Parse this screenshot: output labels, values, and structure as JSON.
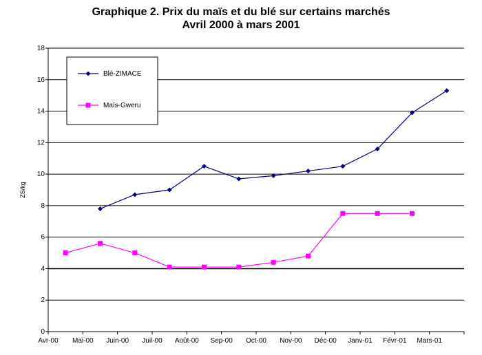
{
  "chart_data": {
    "type": "line",
    "title": "Graphique 2. Prix du maïs et du blé sur certains marchés",
    "subtitle": "Avril 2000 à mars 2001",
    "xlabel": "",
    "ylabel": "ZS/kg",
    "ylim": [
      0,
      18
    ],
    "yticks": [
      0,
      2,
      4,
      6,
      8,
      10,
      12,
      14,
      16,
      18
    ],
    "grid": true,
    "legend_position": "top-left",
    "categories": [
      "Avr-00",
      "Mai-00",
      "Juin-00",
      "Juil-00",
      "Août-00",
      "Sep-00",
      "Oct-00",
      "Nov-00",
      "Déc-00",
      "Janv-01",
      "Févr-01",
      "Mars-01"
    ],
    "series": [
      {
        "name": "Blé-ZIMACE",
        "color": "#000080",
        "marker": "diamond",
        "values": [
          null,
          7.8,
          8.7,
          9.0,
          10.5,
          9.7,
          9.9,
          10.2,
          10.5,
          11.6,
          13.9,
          15.3
        ]
      },
      {
        "name": "Maïs-Gweru",
        "color": "#ff00ff",
        "marker": "square",
        "values": [
          5.0,
          5.6,
          5.0,
          4.1,
          4.1,
          4.1,
          4.4,
          4.8,
          7.5,
          7.5,
          7.5,
          null
        ]
      }
    ]
  }
}
